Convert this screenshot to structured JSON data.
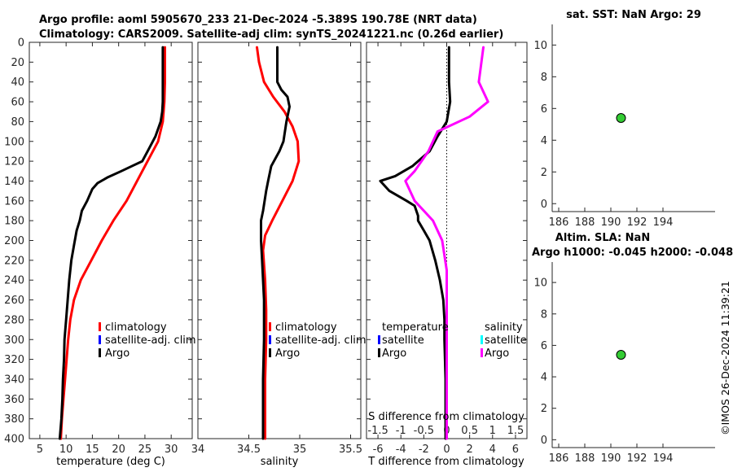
{
  "header": {
    "title_line1": "Argo profile: aoml 5905670_233 21-Dec-2024 -5.389S 190.78E (NRT data)",
    "title_line2": "Climatology: CARS2009. Satellite-adj clim: synTS_20241221.nc (0.26d earlier)"
  },
  "watermark": "©IMOS 26-Dec-2024 11:39:21",
  "colors": {
    "climatology": "#ff0000",
    "satellite": "#0000ff",
    "argo": "#000000",
    "satellite_s": "#00ffff",
    "salinity_diff": "#ff00ff",
    "marker_fill": "#33cc33"
  },
  "chart_data": [
    {
      "id": "temperature",
      "type": "line",
      "xlabel": "temperature (deg C)",
      "xlim": [
        3,
        34
      ],
      "xticks": [
        5,
        10,
        15,
        20,
        25,
        30
      ],
      "ylim": [
        0,
        400
      ],
      "yticks": [
        0,
        20,
        40,
        60,
        80,
        100,
        120,
        140,
        160,
        180,
        200,
        220,
        240,
        260,
        280,
        300,
        320,
        340,
        360,
        380,
        400
      ],
      "legend": [
        "climatology",
        "satellite-adj. clim",
        "Argo"
      ],
      "series": [
        {
          "name": "climatology",
          "color": "#ff0000",
          "points": [
            [
              28.8,
              5
            ],
            [
              28.8,
              20
            ],
            [
              28.8,
              40
            ],
            [
              28.7,
              60
            ],
            [
              28.4,
              80
            ],
            [
              27.5,
              100
            ],
            [
              25.5,
              120
            ],
            [
              23.5,
              140
            ],
            [
              21.5,
              160
            ],
            [
              19,
              180
            ],
            [
              16.8,
              200
            ],
            [
              14.8,
              220
            ],
            [
              12.8,
              240
            ],
            [
              11.5,
              260
            ],
            [
              10.8,
              280
            ],
            [
              10.4,
              300
            ],
            [
              10.1,
              320
            ],
            [
              9.8,
              340
            ],
            [
              9.5,
              360
            ],
            [
              9.2,
              380
            ],
            [
              9,
              400
            ]
          ]
        },
        {
          "name": "Argo",
          "color": "#000000",
          "points": [
            [
              28.4,
              5
            ],
            [
              28.4,
              20
            ],
            [
              28.4,
              40
            ],
            [
              28.4,
              60
            ],
            [
              28.3,
              70
            ],
            [
              28,
              80
            ],
            [
              27,
              95
            ],
            [
              25.5,
              110
            ],
            [
              24.5,
              120
            ],
            [
              22.5,
              125
            ],
            [
              20.5,
              130
            ],
            [
              18,
              136
            ],
            [
              16,
              142
            ],
            [
              15,
              148
            ],
            [
              14,
              160
            ],
            [
              13,
              170
            ],
            [
              12.6,
              180
            ],
            [
              12,
              190
            ],
            [
              11.5,
              205
            ],
            [
              11,
              220
            ],
            [
              10.6,
              240
            ],
            [
              10.3,
              260
            ],
            [
              10,
              280
            ],
            [
              9.7,
              300
            ],
            [
              9.6,
              320
            ],
            [
              9.4,
              340
            ],
            [
              9.3,
              360
            ],
            [
              9.1,
              380
            ],
            [
              8.8,
              400
            ]
          ]
        }
      ]
    },
    {
      "id": "salinity",
      "type": "line",
      "xlabel": "salinity",
      "xlim": [
        34,
        35.6
      ],
      "xticks": [
        34,
        34.5,
        35,
        35.5
      ],
      "xticklabels": [
        "34",
        "34.5",
        "35",
        "35.5"
      ],
      "ylim": [
        0,
        400
      ],
      "legend": [
        "climatology",
        "satellite-adj. clim",
        "Argo"
      ],
      "series": [
        {
          "name": "climatology",
          "color": "#ff0000",
          "points": [
            [
              34.58,
              5
            ],
            [
              34.6,
              20
            ],
            [
              34.65,
              40
            ],
            [
              34.74,
              55
            ],
            [
              34.85,
              70
            ],
            [
              34.93,
              85
            ],
            [
              34.98,
              100
            ],
            [
              34.99,
              120
            ],
            [
              34.93,
              140
            ],
            [
              34.83,
              160
            ],
            [
              34.73,
              180
            ],
            [
              34.66,
              195
            ],
            [
              34.64,
              210
            ],
            [
              34.66,
              240
            ],
            [
              34.67,
              270
            ],
            [
              34.67,
              300
            ],
            [
              34.66,
              340
            ],
            [
              34.66,
              400
            ]
          ]
        },
        {
          "name": "Argo",
          "color": "#000000",
          "points": [
            [
              34.78,
              5
            ],
            [
              34.78,
              40
            ],
            [
              34.82,
              48
            ],
            [
              34.88,
              55
            ],
            [
              34.9,
              65
            ],
            [
              34.87,
              80
            ],
            [
              34.84,
              100
            ],
            [
              34.8,
              110
            ],
            [
              34.72,
              125
            ],
            [
              34.69,
              140
            ],
            [
              34.67,
              150
            ],
            [
              34.64,
              170
            ],
            [
              34.62,
              180
            ],
            [
              34.62,
              200
            ],
            [
              34.63,
              220
            ],
            [
              34.64,
              240
            ],
            [
              34.65,
              260
            ],
            [
              34.65,
              300
            ],
            [
              34.64,
              340
            ],
            [
              34.64,
              400
            ]
          ]
        }
      ]
    },
    {
      "id": "difference",
      "type": "line",
      "xlabel": "T difference from climatology",
      "top_xlabel": "S difference from climatology",
      "xlim": [
        -7,
        7
      ],
      "xticks": [
        -6,
        -4,
        -2,
        0,
        2,
        4,
        6
      ],
      "xticklabels": [
        "-6",
        "-4",
        "-2",
        "0",
        "2",
        "4",
        "6"
      ],
      "top_xticklabels": [
        "-1.5",
        "-1",
        "-0.5",
        "0",
        "0.5",
        "1",
        "1.5"
      ],
      "ylim": [
        0,
        400
      ],
      "legend_temperature_title": "temperature",
      "legend_salinity_title": "salinity",
      "legend_temperature": [
        "satellite",
        "Argo"
      ],
      "legend_salinity": [
        "satellite",
        "Argo"
      ],
      "series": [
        {
          "name": "T difference (Argo)",
          "color": "#000000",
          "points": [
            [
              0.2,
              5
            ],
            [
              0.2,
              40
            ],
            [
              0.3,
              60
            ],
            [
              0,
              80
            ],
            [
              -0.8,
              95
            ],
            [
              -1.5,
              110
            ],
            [
              -2.5,
              120
            ],
            [
              -3,
              125
            ],
            [
              -4.5,
              135
            ],
            [
              -5.8,
              140
            ],
            [
              -5,
              150
            ],
            [
              -3.5,
              160
            ],
            [
              -2.8,
              165
            ],
            [
              -2.5,
              175
            ],
            [
              -2.5,
              180
            ],
            [
              -2,
              190
            ],
            [
              -1.5,
              200
            ],
            [
              -1,
              220
            ],
            [
              -0.6,
              240
            ],
            [
              -0.3,
              260
            ],
            [
              -0.2,
              280
            ],
            [
              -0.2,
              300
            ],
            [
              -0.1,
              340
            ],
            [
              -0.1,
              400
            ]
          ]
        },
        {
          "name": "S difference (Argo)",
          "color": "#ff00ff",
          "points": [
            [
              0.8,
              5
            ],
            [
              0.7,
              40
            ],
            [
              0.9,
              60
            ],
            [
              0.5,
              75
            ],
            [
              -0.2,
              90
            ],
            [
              -0.4,
              110
            ],
            [
              -0.7,
              130
            ],
            [
              -0.9,
              140
            ],
            [
              -0.7,
              160
            ],
            [
              -0.3,
              180
            ],
            [
              -0.1,
              200
            ],
            [
              0,
              230
            ],
            [
              0,
              280
            ],
            [
              0,
              400
            ]
          ]
        }
      ]
    },
    {
      "id": "sst",
      "type": "scatter",
      "title": "sat. SST: NaN Argo: 29",
      "xlim": [
        185.5,
        198
      ],
      "xticks": [
        186,
        188,
        190,
        192,
        194
      ],
      "ylim": [
        -0.5,
        11.3
      ],
      "yticks": [
        0,
        2,
        4,
        6,
        8,
        10
      ],
      "points": [
        [
          190.78,
          5.4
        ]
      ]
    },
    {
      "id": "sla",
      "type": "scatter",
      "title_line1": "Altim. SLA: NaN",
      "title_line2": "Argo h1000: -0.045 h2000: -0.048",
      "xlim": [
        185.5,
        198
      ],
      "xticks": [
        186,
        188,
        190,
        192,
        194
      ],
      "ylim": [
        -0.5,
        11.3
      ],
      "yticks": [
        0,
        2,
        4,
        6,
        8,
        10
      ],
      "points": [
        [
          190.78,
          5.4
        ]
      ]
    }
  ]
}
